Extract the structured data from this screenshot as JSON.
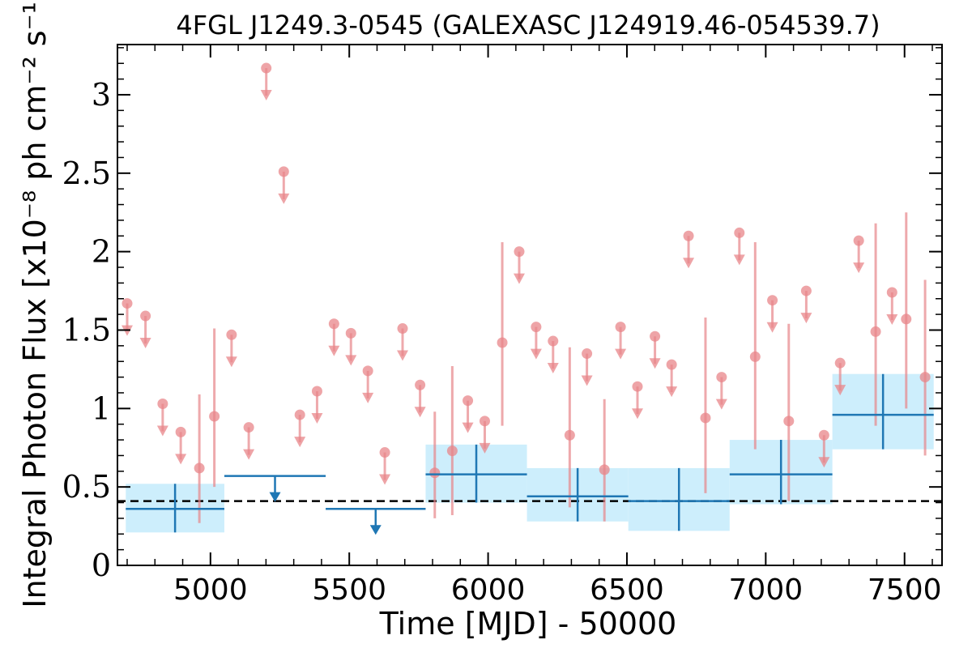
{
  "chart_data": {
    "type": "scatter",
    "title": "4FGL J1249.3-0545 (GALEXASC J124919.46-054539.7)",
    "xlabel": "Time [MJD] - 50000",
    "ylabel": "Integral Photon Flux [x10⁻⁸ ph cm⁻² s⁻¹]",
    "xlim": [
      4665,
      7635
    ],
    "ylim": [
      0,
      3.32
    ],
    "x_ticks": [
      5000,
      5500,
      6000,
      6500,
      7000,
      7500
    ],
    "x_tick_labels": [
      "5000",
      "5500",
      "6000",
      "6500",
      "7000",
      "7500"
    ],
    "y_ticks": [
      0,
      0.5,
      1,
      1.5,
      2,
      2.5,
      3
    ],
    "y_tick_labels": [
      "0",
      "0.5",
      "1",
      "1.5",
      "2",
      "2.5",
      "3"
    ],
    "reference_line": {
      "y": 0.41,
      "style": "dashed",
      "color": "#000000"
    },
    "colors": {
      "monthly": "#e8868a",
      "yearly": "#1f77b4",
      "yearly_band": "#cdeefc"
    },
    "series": [
      {
        "kind": "monthly",
        "detections": [
          {
            "x": 4960,
            "y": 0.62,
            "lo": 0.27,
            "hi": 1.09
          },
          {
            "x": 5014,
            "y": 0.95,
            "lo": 0.5,
            "hi": 1.51
          },
          {
            "x": 5808,
            "y": 0.59,
            "lo": 0.3,
            "hi": 0.98
          },
          {
            "x": 5871,
            "y": 0.73,
            "lo": 0.32,
            "hi": 1.27
          },
          {
            "x": 6051,
            "y": 1.42,
            "lo": 0.89,
            "hi": 2.06
          },
          {
            "x": 6294,
            "y": 0.83,
            "lo": 0.37,
            "hi": 1.39
          },
          {
            "x": 6419,
            "y": 0.61,
            "lo": 0.28,
            "hi": 1.06
          },
          {
            "x": 6783,
            "y": 0.94,
            "lo": 0.46,
            "hi": 1.58
          },
          {
            "x": 6962,
            "y": 1.33,
            "lo": 0.74,
            "hi": 2.06
          },
          {
            "x": 7083,
            "y": 0.92,
            "lo": 0.41,
            "hi": 1.54
          },
          {
            "x": 7396,
            "y": 1.49,
            "lo": 0.89,
            "hi": 2.18
          },
          {
            "x": 7506,
            "y": 1.57,
            "lo": 1.0,
            "hi": 2.25
          },
          {
            "x": 7574,
            "y": 1.2,
            "lo": 0.7,
            "hi": 1.82
          }
        ],
        "upper_limits": [
          {
            "x": 4700,
            "y": 1.67
          },
          {
            "x": 4766,
            "y": 1.59
          },
          {
            "x": 4828,
            "y": 1.03
          },
          {
            "x": 4893,
            "y": 0.85
          },
          {
            "x": 5076,
            "y": 1.47
          },
          {
            "x": 5138,
            "y": 0.88
          },
          {
            "x": 5201,
            "y": 3.17
          },
          {
            "x": 5264,
            "y": 2.51
          },
          {
            "x": 5322,
            "y": 0.96
          },
          {
            "x": 5384,
            "y": 1.11
          },
          {
            "x": 5445,
            "y": 1.54
          },
          {
            "x": 5506,
            "y": 1.48
          },
          {
            "x": 5567,
            "y": 1.24
          },
          {
            "x": 5628,
            "y": 0.72
          },
          {
            "x": 5692,
            "y": 1.51
          },
          {
            "x": 5755,
            "y": 1.15
          },
          {
            "x": 5927,
            "y": 1.05
          },
          {
            "x": 5988,
            "y": 0.92
          },
          {
            "x": 6112,
            "y": 2.0
          },
          {
            "x": 6173,
            "y": 1.52
          },
          {
            "x": 6234,
            "y": 1.43
          },
          {
            "x": 6356,
            "y": 1.35
          },
          {
            "x": 6477,
            "y": 1.52
          },
          {
            "x": 6538,
            "y": 1.14
          },
          {
            "x": 6601,
            "y": 1.46
          },
          {
            "x": 6661,
            "y": 1.28
          },
          {
            "x": 6722,
            "y": 2.1
          },
          {
            "x": 6841,
            "y": 1.2
          },
          {
            "x": 6905,
            "y": 2.12
          },
          {
            "x": 7024,
            "y": 1.69
          },
          {
            "x": 7146,
            "y": 1.75
          },
          {
            "x": 7210,
            "y": 0.83
          },
          {
            "x": 7268,
            "y": 1.29
          },
          {
            "x": 7335,
            "y": 2.07
          },
          {
            "x": 7455,
            "y": 1.74
          }
        ]
      },
      {
        "kind": "yearly",
        "detections": [
          {
            "x0": 4695,
            "x1": 5050,
            "y": 0.36,
            "lo": 0.21,
            "hi": 0.52
          },
          {
            "x0": 5775,
            "x1": 6140,
            "y": 0.58,
            "lo": 0.4,
            "hi": 0.77
          },
          {
            "x0": 6140,
            "x1": 6505,
            "y": 0.44,
            "lo": 0.28,
            "hi": 0.62
          },
          {
            "x0": 6505,
            "x1": 6870,
            "y": 0.41,
            "lo": 0.22,
            "hi": 0.62
          },
          {
            "x0": 6870,
            "x1": 7240,
            "y": 0.58,
            "lo": 0.39,
            "hi": 0.8
          },
          {
            "x0": 7240,
            "x1": 7605,
            "y": 0.96,
            "lo": 0.74,
            "hi": 1.22
          }
        ],
        "upper_limits": [
          {
            "x0": 5050,
            "x1": 5415,
            "y": 0.57
          },
          {
            "x0": 5415,
            "x1": 5775,
            "y": 0.36
          }
        ]
      }
    ]
  }
}
